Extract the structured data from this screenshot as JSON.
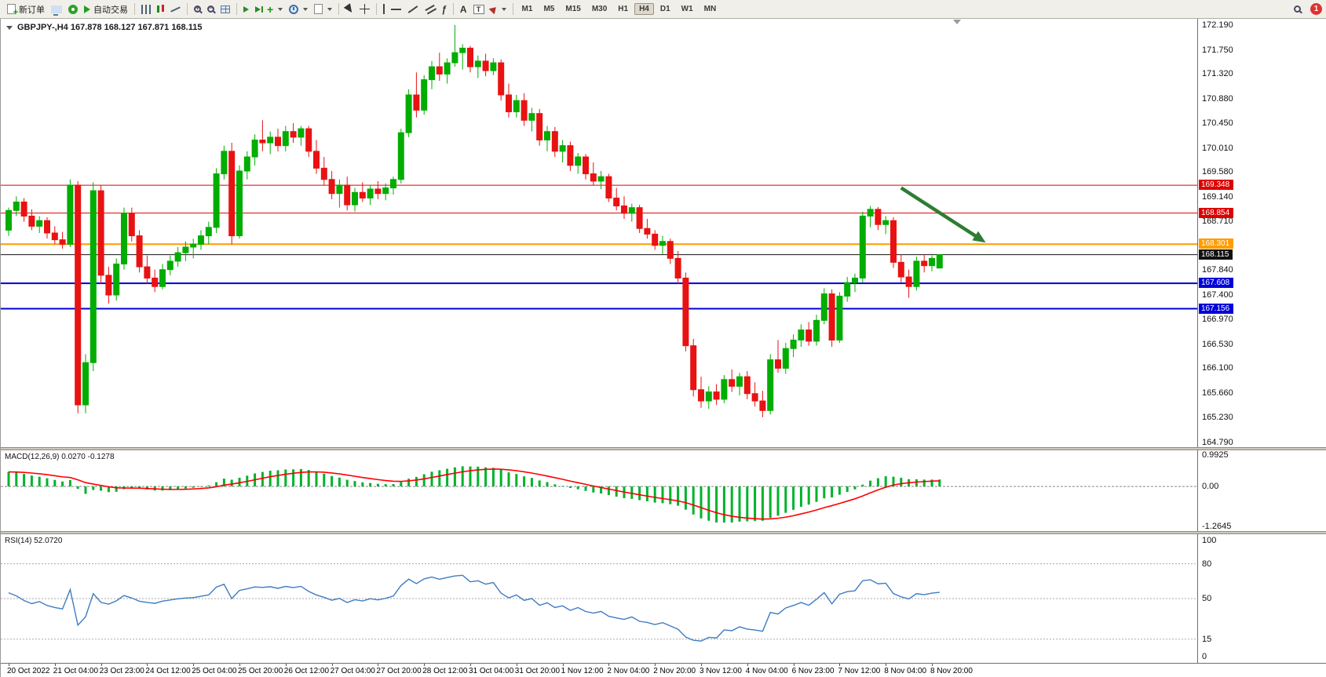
{
  "toolbar": {
    "new_order": "新订单",
    "autotrading": "自动交易",
    "glyphs": {
      "text_tool": "A",
      "label_tool": "T",
      "fibonacci_tool": "ƒ",
      "indicator_plus": "+",
      "zoom_in": "+",
      "zoom_out": "−"
    },
    "timeframes": [
      "M1",
      "M5",
      "M15",
      "M30",
      "H1",
      "H4",
      "D1",
      "W1",
      "MN"
    ],
    "active_timeframe": "H4",
    "notification_badge": "1"
  },
  "chart": {
    "title": "GBPJPY-,H4 167.878 168.127 167.871 168.115",
    "up_color": "#00ad00",
    "down_color": "#e81212",
    "ylim": [
      164.7,
      172.3
    ],
    "y_ticks": [
      "172.190",
      "171.750",
      "171.320",
      "170.880",
      "170.450",
      "170.010",
      "169.580",
      "169.140",
      "168.710",
      "168.270",
      "167.840",
      "167.400",
      "166.970",
      "166.530",
      "166.100",
      "165.660",
      "165.230",
      "164.790"
    ],
    "levels": [
      {
        "price": 169.348,
        "label": "169.348",
        "color": "#dd0000",
        "width": 1
      },
      {
        "price": 168.854,
        "label": "168.854",
        "color": "#dd0000",
        "width": 1
      },
      {
        "price": 168.301,
        "label": "168.301",
        "color": "#ff9c00",
        "width": 2
      },
      {
        "price": 168.115,
        "label": "168.115",
        "color": "#111111",
        "width": 1
      },
      {
        "price": 167.608,
        "label": "167.608",
        "color": "#0000d8",
        "width": 2
      },
      {
        "price": 167.156,
        "label": "167.156",
        "color": "#0000d8",
        "width": 2
      }
    ],
    "annotation_arrow": {
      "from_candle": 116,
      "from_price": 169.3,
      "to_candle": 127,
      "to_price": 168.33,
      "color": "#2e7d32"
    }
  },
  "macd": {
    "label": "MACD(12,26,9) 0.0270 -0.1278",
    "params": [
      12,
      26,
      9
    ],
    "y_ticks": [
      "0.9925",
      "0.00",
      "-1.2645"
    ],
    "tick_values": [
      0.9925,
      0,
      -1.2645
    ],
    "ylim": [
      -1.42,
      1.15
    ],
    "histogram_color": "#00b22c",
    "signal_color": "#ff0000"
  },
  "rsi": {
    "label": "RSI(14) 52.0720",
    "period": 14,
    "y_ticks": [
      "100",
      "80",
      "50",
      "15",
      "0"
    ],
    "tick_values": [
      100,
      80,
      50,
      15,
      0
    ],
    "level_lines": [
      80,
      50,
      15
    ],
    "ylim": [
      0,
      100
    ],
    "line_color": "#3f7cc4"
  },
  "time_axis": {
    "candles_per_label": 6,
    "labels": [
      "20 Oct 2022",
      "21 Oct 04:00",
      "23 Oct 23:00",
      "24 Oct 12:00",
      "25 Oct 04:00",
      "25 Oct 20:00",
      "26 Oct 12:00",
      "27 Oct 04:00",
      "27 Oct 20:00",
      "28 Oct 12:00",
      "31 Oct 04:00",
      "31 Oct 20:00",
      "1 Nov 12:00",
      "2 Nov 04:00",
      "2 Nov 20:00",
      "3 Nov 12:00",
      "4 Nov 04:00",
      "6 Nov 23:00",
      "7 Nov 12:00",
      "8 Nov 04:00",
      "8 Nov 20:00"
    ]
  },
  "chart_data": {
    "type": "candlestick",
    "symbol": "GBPJPY-",
    "timeframe": "H4",
    "last_ohlc": {
      "open": 167.878,
      "high": 168.127,
      "low": 167.871,
      "close": 168.115
    },
    "candles": [
      [
        168.55,
        168.95,
        168.45,
        168.9
      ],
      [
        168.9,
        169.15,
        168.8,
        169.05
      ],
      [
        169.05,
        169.12,
        168.7,
        168.8
      ],
      [
        168.8,
        168.92,
        168.55,
        168.62
      ],
      [
        168.62,
        168.8,
        168.5,
        168.72
      ],
      [
        168.72,
        168.78,
        168.4,
        168.5
      ],
      [
        168.5,
        168.62,
        168.3,
        168.38
      ],
      [
        168.38,
        168.52,
        168.22,
        168.3
      ],
      [
        168.3,
        169.45,
        168.25,
        169.35
      ],
      [
        169.35,
        169.42,
        165.3,
        165.45
      ],
      [
        165.45,
        166.35,
        165.3,
        166.2
      ],
      [
        166.2,
        169.4,
        166.05,
        169.25
      ],
      [
        169.25,
        169.35,
        167.6,
        167.75
      ],
      [
        167.75,
        167.9,
        167.25,
        167.4
      ],
      [
        167.4,
        168.05,
        167.3,
        167.95
      ],
      [
        167.95,
        168.95,
        167.85,
        168.85
      ],
      [
        168.85,
        168.95,
        168.35,
        168.45
      ],
      [
        168.45,
        168.55,
        167.8,
        167.9
      ],
      [
        167.9,
        168.1,
        167.6,
        167.7
      ],
      [
        167.7,
        167.85,
        167.45,
        167.55
      ],
      [
        167.55,
        167.95,
        167.5,
        167.85
      ],
      [
        167.85,
        168.1,
        167.75,
        168.0
      ],
      [
        168.0,
        168.25,
        167.9,
        168.15
      ],
      [
        168.15,
        168.35,
        168.0,
        168.25
      ],
      [
        168.25,
        168.4,
        168.05,
        168.3
      ],
      [
        168.3,
        168.55,
        168.2,
        168.45
      ],
      [
        168.45,
        168.7,
        168.3,
        168.6
      ],
      [
        168.6,
        169.65,
        168.5,
        169.55
      ],
      [
        169.55,
        170.05,
        169.45,
        169.95
      ],
      [
        169.95,
        170.1,
        168.3,
        168.45
      ],
      [
        168.45,
        169.7,
        168.4,
        169.6
      ],
      [
        169.6,
        169.95,
        169.45,
        169.85
      ],
      [
        169.85,
        170.25,
        169.7,
        170.15
      ],
      [
        170.15,
        170.5,
        169.95,
        170.1
      ],
      [
        170.1,
        170.3,
        169.9,
        170.2
      ],
      [
        170.2,
        170.35,
        169.95,
        170.05
      ],
      [
        170.05,
        170.4,
        169.95,
        170.3
      ],
      [
        170.3,
        170.45,
        170.1,
        170.2
      ],
      [
        170.2,
        170.4,
        170.05,
        170.35
      ],
      [
        170.35,
        170.4,
        169.85,
        169.95
      ],
      [
        169.95,
        170.15,
        169.55,
        169.65
      ],
      [
        169.65,
        169.85,
        169.35,
        169.45
      ],
      [
        169.45,
        169.6,
        169.1,
        169.2
      ],
      [
        169.2,
        169.45,
        168.95,
        169.35
      ],
      [
        169.35,
        169.5,
        168.9,
        169.0
      ],
      [
        169.0,
        169.3,
        168.88,
        169.22
      ],
      [
        169.22,
        169.4,
        169.05,
        169.12
      ],
      [
        169.12,
        169.35,
        169.0,
        169.28
      ],
      [
        169.28,
        169.42,
        169.1,
        169.2
      ],
      [
        169.2,
        169.38,
        169.08,
        169.3
      ],
      [
        169.3,
        169.5,
        169.18,
        169.45
      ],
      [
        169.45,
        170.35,
        169.38,
        170.28
      ],
      [
        170.28,
        171.05,
        170.2,
        170.95
      ],
      [
        170.95,
        171.35,
        170.55,
        170.68
      ],
      [
        170.68,
        171.3,
        170.6,
        171.22
      ],
      [
        171.22,
        171.55,
        171.05,
        171.45
      ],
      [
        171.45,
        171.7,
        171.2,
        171.32
      ],
      [
        171.32,
        171.6,
        171.15,
        171.52
      ],
      [
        171.52,
        172.19,
        171.45,
        171.7
      ],
      [
        171.7,
        171.85,
        171.4,
        171.78
      ],
      [
        171.78,
        171.82,
        171.35,
        171.45
      ],
      [
        171.45,
        171.65,
        171.25,
        171.55
      ],
      [
        171.55,
        171.68,
        171.28,
        171.38
      ],
      [
        171.38,
        171.6,
        171.3,
        171.52
      ],
      [
        171.52,
        171.58,
        170.85,
        170.95
      ],
      [
        170.95,
        171.15,
        170.55,
        170.65
      ],
      [
        170.65,
        170.95,
        170.55,
        170.85
      ],
      [
        170.85,
        170.98,
        170.4,
        170.5
      ],
      [
        170.5,
        170.72,
        170.3,
        170.62
      ],
      [
        170.62,
        170.7,
        170.05,
        170.15
      ],
      [
        170.15,
        170.4,
        169.95,
        170.3
      ],
      [
        170.3,
        170.38,
        169.85,
        169.95
      ],
      [
        169.95,
        170.15,
        169.75,
        170.05
      ],
      [
        170.05,
        170.12,
        169.6,
        169.7
      ],
      [
        169.7,
        169.92,
        169.55,
        169.85
      ],
      [
        169.85,
        169.9,
        169.45,
        169.55
      ],
      [
        169.55,
        169.75,
        169.35,
        169.42
      ],
      [
        169.42,
        169.6,
        169.28,
        169.5
      ],
      [
        169.5,
        169.55,
        169.05,
        169.12
      ],
      [
        169.12,
        169.3,
        168.9,
        168.98
      ],
      [
        168.98,
        169.15,
        168.75,
        168.85
      ],
      [
        168.85,
        169.02,
        168.7,
        168.95
      ],
      [
        168.95,
        169.0,
        168.5,
        168.58
      ],
      [
        168.58,
        168.75,
        168.4,
        168.48
      ],
      [
        168.48,
        168.55,
        168.2,
        168.28
      ],
      [
        168.28,
        168.45,
        168.12,
        168.35
      ],
      [
        168.35,
        168.4,
        167.95,
        168.05
      ],
      [
        168.05,
        168.18,
        167.6,
        167.7
      ],
      [
        167.7,
        167.8,
        166.4,
        166.5
      ],
      [
        166.5,
        166.62,
        165.6,
        165.72
      ],
      [
        165.72,
        165.95,
        165.4,
        165.52
      ],
      [
        165.52,
        165.78,
        165.38,
        165.68
      ],
      [
        165.68,
        165.82,
        165.45,
        165.55
      ],
      [
        165.55,
        165.98,
        165.48,
        165.9
      ],
      [
        165.9,
        166.08,
        165.68,
        165.78
      ],
      [
        165.78,
        166.02,
        165.62,
        165.95
      ],
      [
        165.95,
        166.05,
        165.55,
        165.65
      ],
      [
        165.65,
        165.85,
        165.42,
        165.52
      ],
      [
        165.52,
        165.7,
        165.23,
        165.35
      ],
      [
        165.35,
        166.35,
        165.28,
        166.25
      ],
      [
        166.25,
        166.6,
        166.02,
        166.1
      ],
      [
        166.1,
        166.55,
        166.0,
        166.45
      ],
      [
        166.45,
        166.7,
        166.3,
        166.6
      ],
      [
        166.6,
        166.88,
        166.48,
        166.78
      ],
      [
        166.78,
        166.92,
        166.5,
        166.58
      ],
      [
        166.58,
        167.05,
        166.5,
        166.95
      ],
      [
        166.95,
        167.52,
        166.88,
        167.42
      ],
      [
        167.42,
        167.5,
        166.48,
        166.6
      ],
      [
        166.6,
        167.45,
        166.55,
        167.38
      ],
      [
        167.38,
        167.72,
        167.28,
        167.62
      ],
      [
        167.62,
        167.78,
        167.45,
        167.7
      ],
      [
        167.7,
        168.88,
        167.62,
        168.8
      ],
      [
        168.8,
        168.98,
        168.6,
        168.92
      ],
      [
        168.92,
        168.96,
        168.55,
        168.65
      ],
      [
        168.65,
        168.8,
        168.48,
        168.72
      ],
      [
        168.72,
        168.78,
        167.88,
        167.98
      ],
      [
        167.98,
        168.12,
        167.62,
        167.72
      ],
      [
        167.72,
        167.85,
        167.35,
        167.55
      ],
      [
        167.55,
        168.08,
        167.48,
        168.0
      ],
      [
        168.0,
        168.12,
        167.8,
        167.92
      ],
      [
        167.92,
        168.1,
        167.82,
        168.05
      ],
      [
        167.878,
        168.127,
        167.871,
        168.115
      ]
    ]
  }
}
